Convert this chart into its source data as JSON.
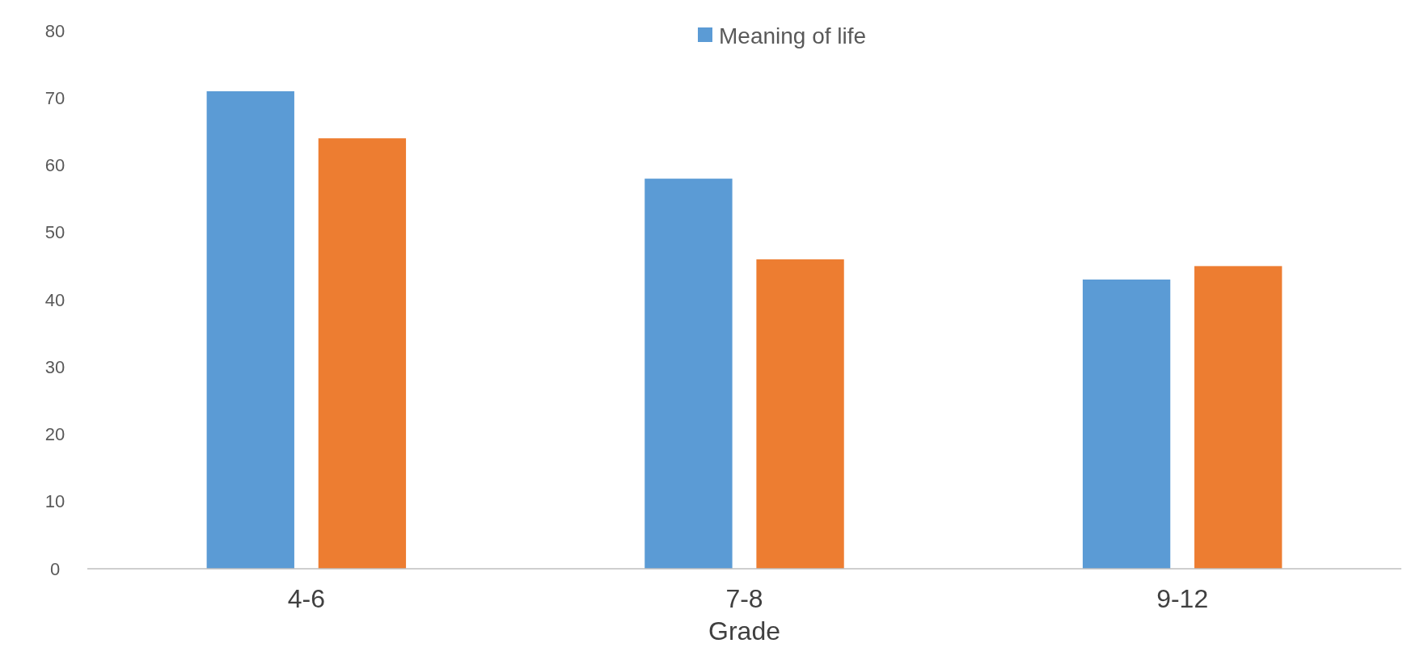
{
  "chart_data": {
    "type": "bar",
    "xlabel": "Grade",
    "categories": [
      "4-6",
      "7-8",
      "9-12"
    ],
    "series": [
      {
        "name": "Meaning of life",
        "color": "#5b9bd5",
        "values": [
          71,
          58,
          43
        ]
      },
      {
        "color": "#ed7d31",
        "values": [
          64,
          46,
          45
        ]
      }
    ],
    "ylim": [
      0,
      80
    ],
    "yticks": [
      0,
      10,
      20,
      30,
      40,
      50,
      60,
      70,
      80
    ],
    "grid": false,
    "legend": "top"
  }
}
